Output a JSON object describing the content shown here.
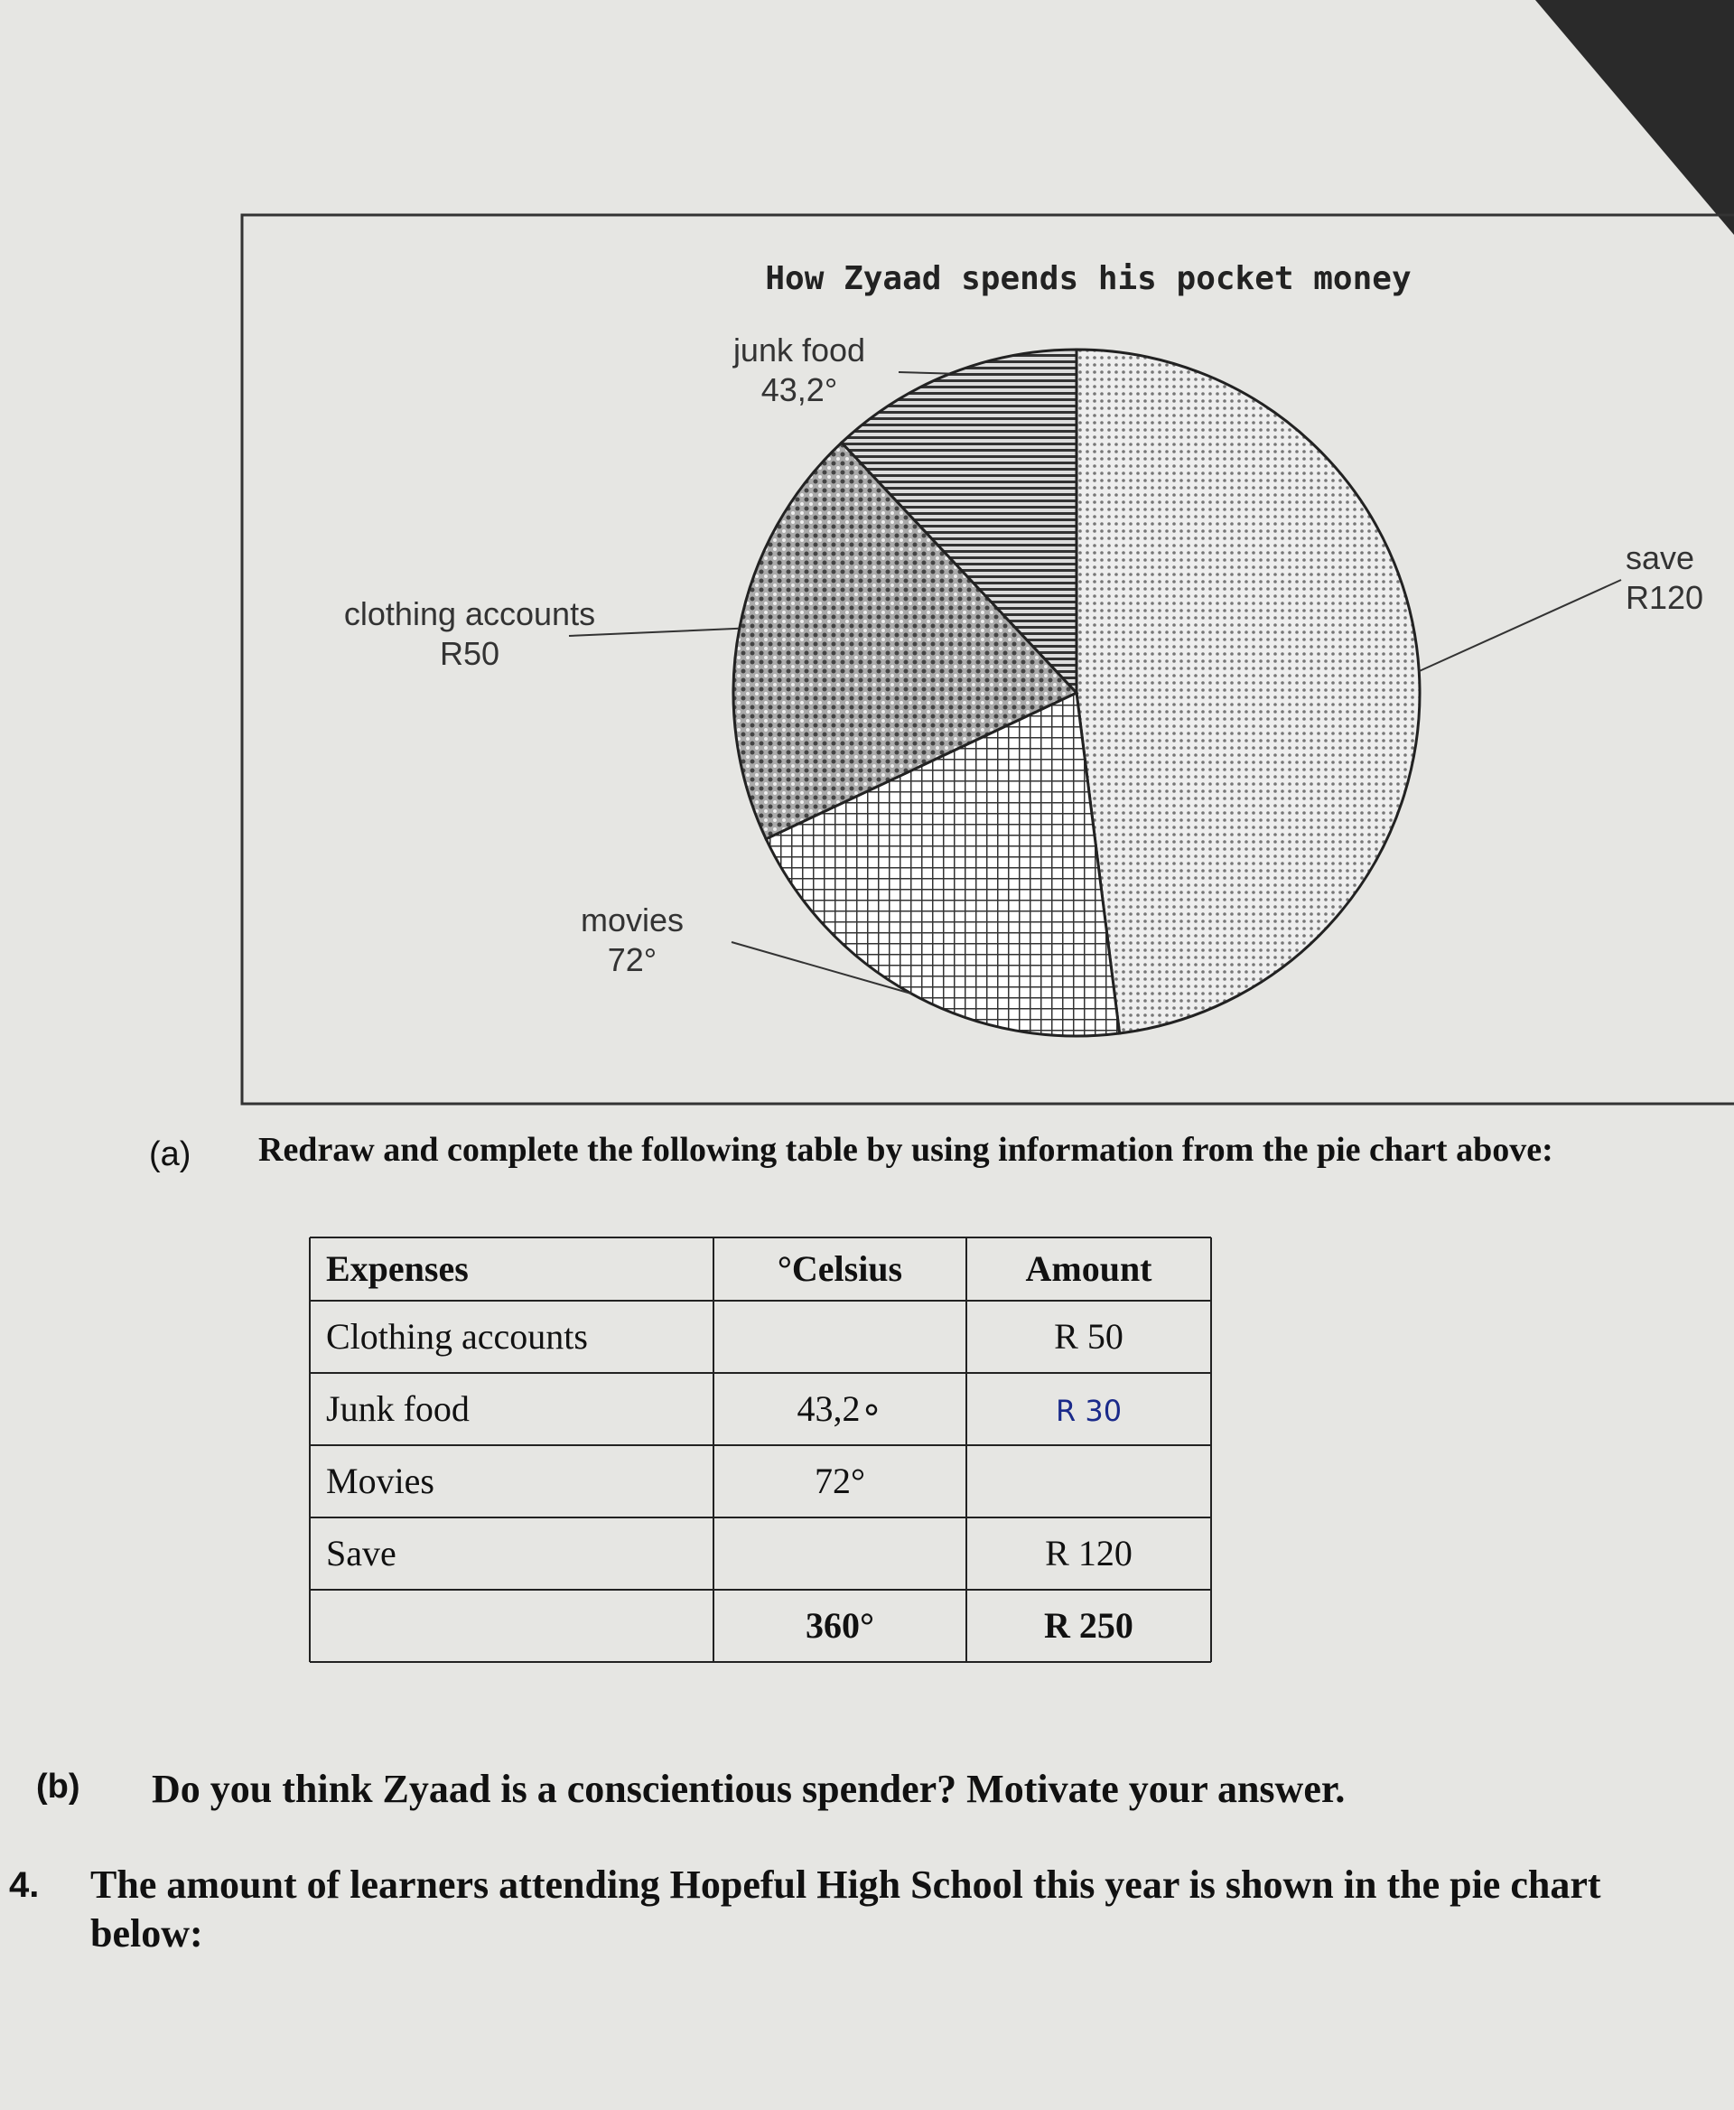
{
  "chart_data": {
    "type": "pie",
    "title": "How Zyaad spends his pocket money",
    "categories": [
      "save",
      "movies",
      "clothing accounts",
      "junk food"
    ],
    "values": [
      172.8,
      72,
      72,
      43.2
    ],
    "labels": [
      "R120",
      "72°",
      "R50",
      "43,2°"
    ]
  },
  "question_a": {
    "number": "(a)",
    "text": "Redraw and complete the following table by using information from the pie chart above:"
  },
  "table": {
    "header": [
      "Expenses",
      "°Celsius",
      "Amount"
    ],
    "rows": [
      [
        "Clothing accounts",
        null,
        "R 50"
      ],
      [
        "Junk food",
        "43,2∘",
        "R 30"
      ],
      [
        "Movies",
        "72°",
        null
      ],
      [
        "Save",
        null,
        "R 120"
      ],
      [
        null,
        "360°",
        "R 250"
      ]
    ]
  },
  "question_b": {
    "number": "(b)",
    "text": "Do you think Zyaad is a conscientious spender? Motivate your answer."
  },
  "question_4": {
    "number": "4.",
    "text": "The amount of learners attending Hopeful High School this year is shown in the pie chart below:"
  }
}
